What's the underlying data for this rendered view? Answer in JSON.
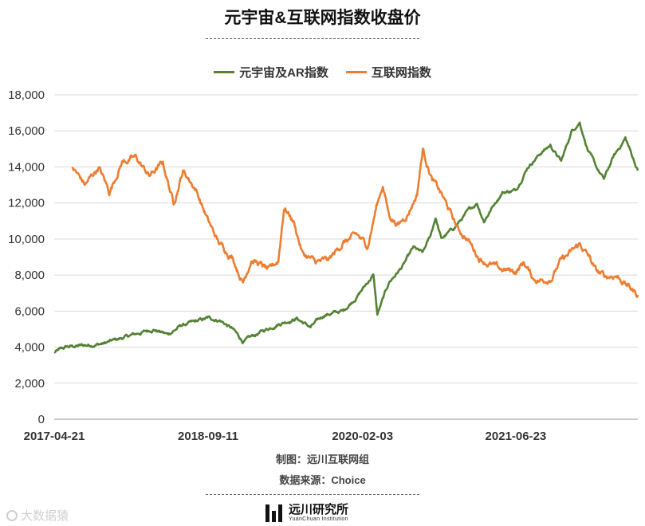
{
  "chart_data": {
    "type": "line",
    "title": "元宇宙&互联网指数收盘价",
    "xlabel": "",
    "ylabel": "",
    "x_ticks": [
      "2017-04-21",
      "2018-09-11",
      "2020-02-03",
      "2021-06-23"
    ],
    "x_range": [
      "2017-04-21",
      "2022-07-31"
    ],
    "ylim": [
      0,
      18000
    ],
    "y_ticks": [
      0,
      2000,
      4000,
      6000,
      8000,
      10000,
      12000,
      14000,
      16000,
      18000
    ],
    "y_tick_labels": [
      "0",
      "2,000",
      "4,000",
      "6,000",
      "8,000",
      "10,000",
      "12,000",
      "14,000",
      "16,000",
      "18,000"
    ],
    "grid": true,
    "legend_position": "top",
    "series": [
      {
        "name": "元宇宙及AR指数",
        "color": "#548235",
        "points": [
          [
            "2017-04-21",
            3700
          ],
          [
            "2017-06-01",
            4000
          ],
          [
            "2017-08-01",
            4100
          ],
          [
            "2017-10-01",
            4200
          ],
          [
            "2017-12-01",
            4500
          ],
          [
            "2018-02-01",
            4800
          ],
          [
            "2018-03-15",
            5000
          ],
          [
            "2018-05-01",
            4700
          ],
          [
            "2018-06-15",
            5200
          ],
          [
            "2018-08-01",
            5400
          ],
          [
            "2018-09-11",
            5600
          ],
          [
            "2018-10-20",
            5500
          ],
          [
            "2018-12-01",
            5000
          ],
          [
            "2019-01-05",
            4300
          ],
          [
            "2019-03-01",
            4800
          ],
          [
            "2019-05-01",
            5300
          ],
          [
            "2019-07-01",
            5600
          ],
          [
            "2019-08-15",
            5100
          ],
          [
            "2019-10-01",
            5800
          ],
          [
            "2019-12-01",
            6000
          ],
          [
            "2020-01-15",
            6800
          ],
          [
            "2020-02-20",
            7600
          ],
          [
            "2020-03-10",
            8000
          ],
          [
            "2020-03-23",
            5800
          ],
          [
            "2020-05-01",
            7600
          ],
          [
            "2020-06-15",
            8500
          ],
          [
            "2020-07-20",
            9500
          ],
          [
            "2020-08-20",
            9200
          ],
          [
            "2020-09-15",
            10200
          ],
          [
            "2020-10-01",
            11200
          ],
          [
            "2020-10-20",
            10000
          ],
          [
            "2020-12-01",
            10600
          ],
          [
            "2021-01-15",
            11500
          ],
          [
            "2021-02-15",
            12000
          ],
          [
            "2021-03-10",
            11000
          ],
          [
            "2021-04-15",
            12000
          ],
          [
            "2021-05-10",
            12600
          ],
          [
            "2021-06-23",
            12700
          ],
          [
            "2021-08-01",
            14000
          ],
          [
            "2021-09-15",
            14800
          ],
          [
            "2021-10-15",
            15200
          ],
          [
            "2021-11-20",
            14300
          ],
          [
            "2021-12-25",
            16000
          ],
          [
            "2022-01-20",
            16500
          ],
          [
            "2022-02-15",
            15000
          ],
          [
            "2022-03-15",
            14000
          ],
          [
            "2022-04-10",
            13300
          ],
          [
            "2022-05-10",
            14500
          ],
          [
            "2022-06-20",
            15600
          ],
          [
            "2022-07-31",
            13800
          ]
        ]
      },
      {
        "name": "互联网指数",
        "color": "#ED7D31",
        "points": [
          [
            "2017-06-20",
            14000
          ],
          [
            "2017-08-01",
            13000
          ],
          [
            "2017-09-15",
            14000
          ],
          [
            "2017-10-20",
            12600
          ],
          [
            "2017-12-01",
            14300
          ],
          [
            "2018-01-15",
            14500
          ],
          [
            "2018-03-01",
            13500
          ],
          [
            "2018-04-15",
            14200
          ],
          [
            "2018-05-20",
            12000
          ],
          [
            "2018-06-20",
            13800
          ],
          [
            "2018-08-01",
            12800
          ],
          [
            "2018-09-11",
            11000
          ],
          [
            "2018-10-15",
            9800
          ],
          [
            "2018-12-01",
            9000
          ],
          [
            "2019-01-04",
            7600
          ],
          [
            "2019-02-01",
            8900
          ],
          [
            "2019-03-10",
            8500
          ],
          [
            "2019-04-01",
            8200
          ],
          [
            "2019-05-01",
            8800
          ],
          [
            "2019-05-20",
            11800
          ],
          [
            "2019-06-20",
            11000
          ],
          [
            "2019-07-20",
            9200
          ],
          [
            "2019-09-01",
            8700
          ],
          [
            "2019-10-15",
            8800
          ],
          [
            "2019-12-01",
            9800
          ],
          [
            "2020-01-15",
            10200
          ],
          [
            "2020-02-20",
            9600
          ],
          [
            "2020-03-20",
            11800
          ],
          [
            "2020-04-10",
            13000
          ],
          [
            "2020-05-01",
            11300
          ],
          [
            "2020-06-01",
            10800
          ],
          [
            "2020-07-01",
            11400
          ],
          [
            "2020-08-01",
            12500
          ],
          [
            "2020-08-20",
            15000
          ],
          [
            "2020-09-20",
            13300
          ],
          [
            "2020-10-20",
            12500
          ],
          [
            "2020-11-15",
            11600
          ],
          [
            "2020-12-15",
            10500
          ],
          [
            "2021-01-15",
            10000
          ],
          [
            "2021-02-20",
            9000
          ],
          [
            "2021-03-20",
            8700
          ],
          [
            "2021-05-01",
            8300
          ],
          [
            "2021-06-23",
            8200
          ],
          [
            "2021-07-20",
            8700
          ],
          [
            "2021-08-20",
            7800
          ],
          [
            "2021-09-20",
            7700
          ],
          [
            "2021-10-20",
            7900
          ],
          [
            "2021-11-15",
            8700
          ],
          [
            "2021-12-20",
            9200
          ],
          [
            "2022-01-20",
            9700
          ],
          [
            "2022-02-20",
            9000
          ],
          [
            "2022-03-15",
            8200
          ],
          [
            "2022-04-15",
            7900
          ],
          [
            "2022-05-20",
            8000
          ],
          [
            "2022-07-31",
            6900
          ]
        ]
      }
    ]
  },
  "footer": {
    "credit_made_by": "制图：远川互联网组",
    "credit_source": "数据来源：Choice",
    "brand_cn": "远川研究所",
    "brand_en": "YuanChuan Institution",
    "watermark": "大数据猿"
  }
}
